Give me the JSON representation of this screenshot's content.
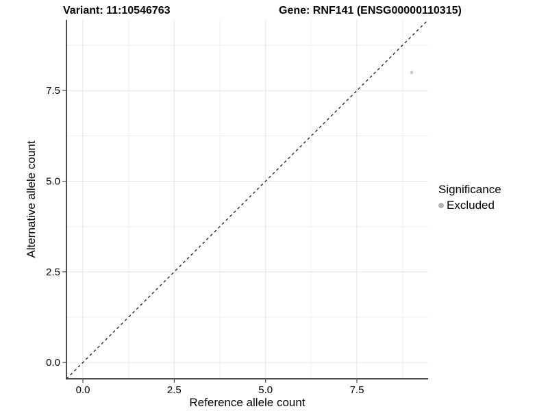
{
  "titles": {
    "variant": "Variant: 11:10546763",
    "gene": "Gene: RNF141 (ENSG00000110315)"
  },
  "axes": {
    "x": {
      "label": "Reference allele count"
    },
    "y": {
      "label": "Alternative allele count"
    }
  },
  "legend": {
    "title": "Significance",
    "items": [
      {
        "label": "Excluded",
        "key_color": "#b3b3b3"
      }
    ]
  },
  "chart_data": {
    "type": "scatter",
    "title": "Variant: 11:10546763 | Gene: RNF141 (ENSG00000110315)",
    "xlabel": "Reference allele count",
    "ylabel": "Alternative allele count",
    "xlim": [
      -0.45,
      9.45
    ],
    "ylim": [
      -0.45,
      9.45
    ],
    "x_ticks": [
      {
        "value": 0,
        "label": "0.0"
      },
      {
        "value": 2.5,
        "label": "2.5"
      },
      {
        "value": 5,
        "label": "5.0"
      },
      {
        "value": 7.5,
        "label": "7.5"
      }
    ],
    "y_ticks": [
      {
        "value": 0,
        "label": "0.0"
      },
      {
        "value": 2.5,
        "label": "2.5"
      },
      {
        "value": 5,
        "label": "5.0"
      },
      {
        "value": 7.5,
        "label": "7.5"
      }
    ],
    "minor_ticks": [
      1.25,
      3.75,
      6.25,
      8.75
    ],
    "grid": true,
    "legend_position": "right",
    "identity_line": {
      "style": "dashed",
      "slope": 1,
      "intercept": 0
    },
    "series": [
      {
        "name": "Excluded",
        "color": "#c3c3c3",
        "points": [
          {
            "x": 9,
            "y": 8
          }
        ]
      }
    ]
  },
  "colors": {
    "point": "#c3c3c3",
    "legend_key": "#b3b3b3",
    "axis_line": "#3a3a3a",
    "tick_mark": "#555555",
    "grid_major": "#e3e3e3",
    "grid_minor": "#efefef",
    "identity_line": "#1a1a1a",
    "text": "#000000"
  }
}
